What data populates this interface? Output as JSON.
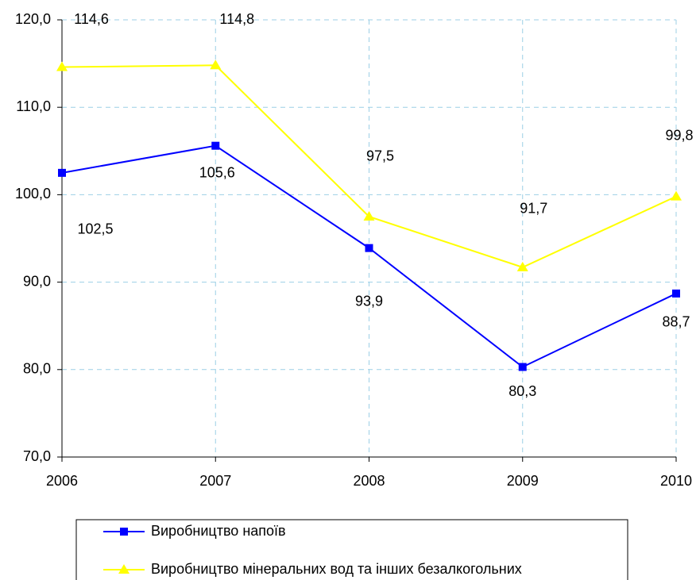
{
  "chart_data": {
    "type": "line",
    "categories": [
      "2006",
      "2007",
      "2008",
      "2009",
      "2010"
    ],
    "series": [
      {
        "name": "Виробництво напоїв",
        "color": "#0000ff",
        "marker": "square",
        "values": [
          102.5,
          105.6,
          93.9,
          80.3,
          88.7
        ],
        "value_labels": [
          "102,5",
          "105,6",
          "93,9",
          "80,3",
          "88,7"
        ]
      },
      {
        "name": "Виробництво мінеральних вод та інших безалкогольних",
        "color": "#ffff00",
        "marker": "triangle",
        "values": [
          114.6,
          114.8,
          97.5,
          91.7,
          99.8
        ],
        "value_labels": [
          "114,6",
          "114,8",
          "97,5",
          "91,7",
          "99,8"
        ]
      }
    ],
    "ylim": [
      70,
      120
    ],
    "yticks": [
      {
        "value": 70,
        "label": "70,0"
      },
      {
        "value": 80,
        "label": "80,0"
      },
      {
        "value": 90,
        "label": "90,0"
      },
      {
        "value": 100,
        "label": "100,0"
      },
      {
        "value": 110,
        "label": "110,0"
      },
      {
        "value": 120,
        "label": "120,0"
      }
    ],
    "grid": true
  }
}
